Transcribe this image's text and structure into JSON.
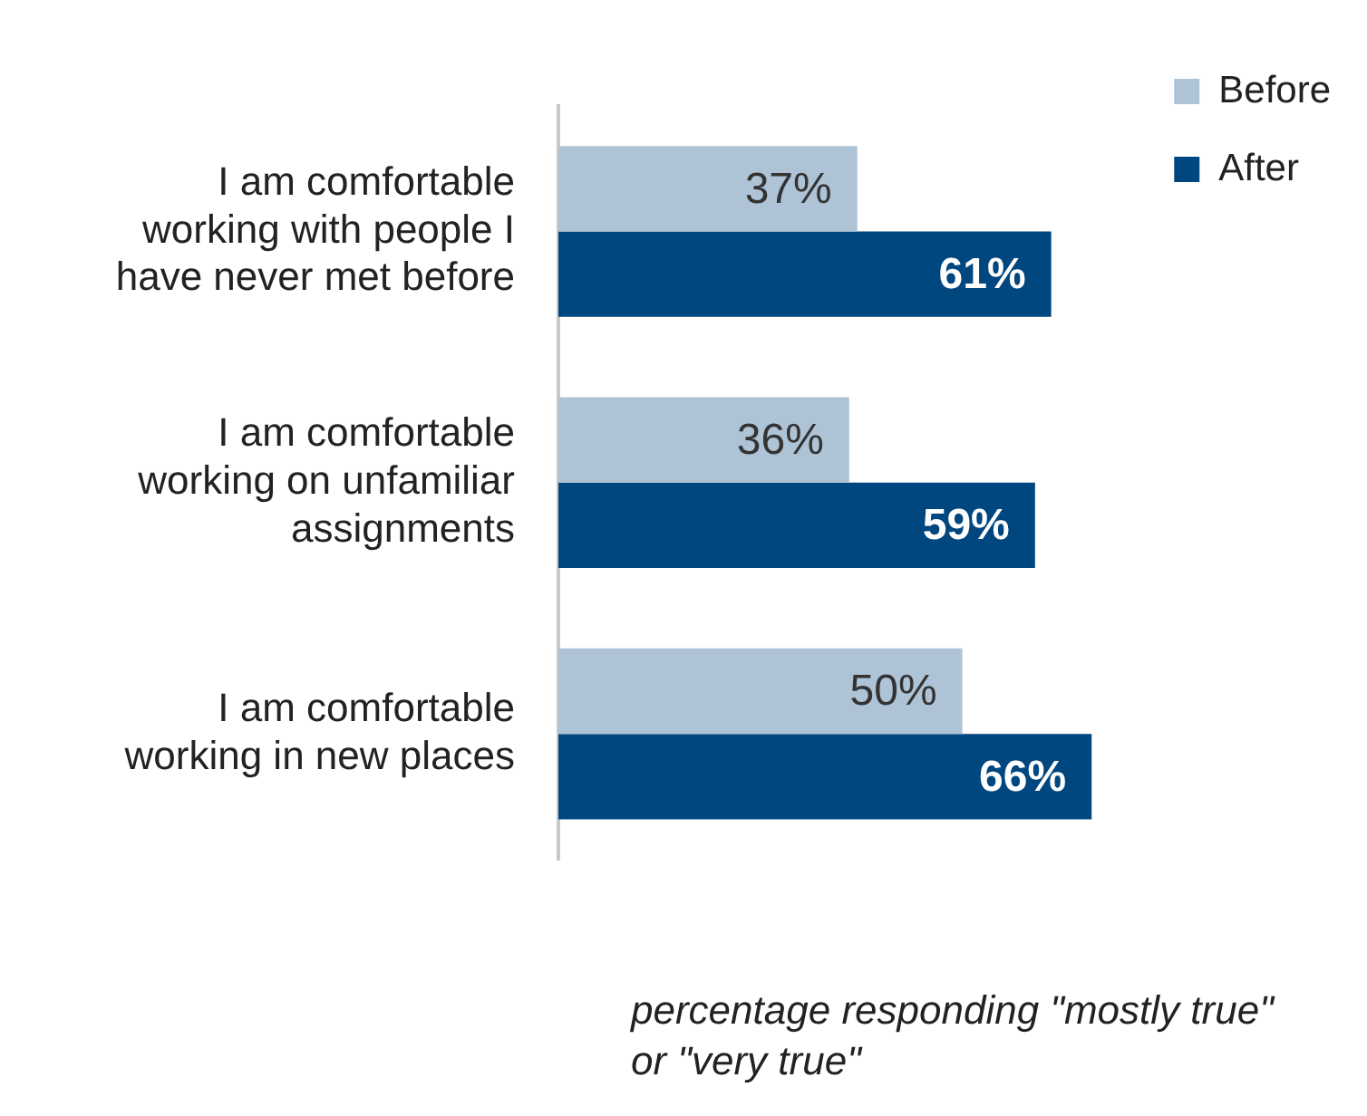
{
  "chart_data": {
    "type": "bar",
    "orientation": "horizontal",
    "categories": [
      "I am comfortable working with people I have never met before",
      "I am comfortable working on unfamiliar assignments",
      "I am comfortable working in new places"
    ],
    "series": [
      {
        "name": "Before",
        "color": "#aec4d6",
        "values": [
          37,
          36,
          50
        ],
        "value_labels": [
          "37%",
          "36%",
          "50%"
        ]
      },
      {
        "name": "After",
        "color": "#00467f",
        "values": [
          61,
          59,
          66
        ],
        "value_labels": [
          "61%",
          "59%",
          "66%"
        ]
      }
    ],
    "legend": "top right",
    "annotations": [
      "percentage responding \"mostly true\" or \"very true\""
    ]
  }
}
